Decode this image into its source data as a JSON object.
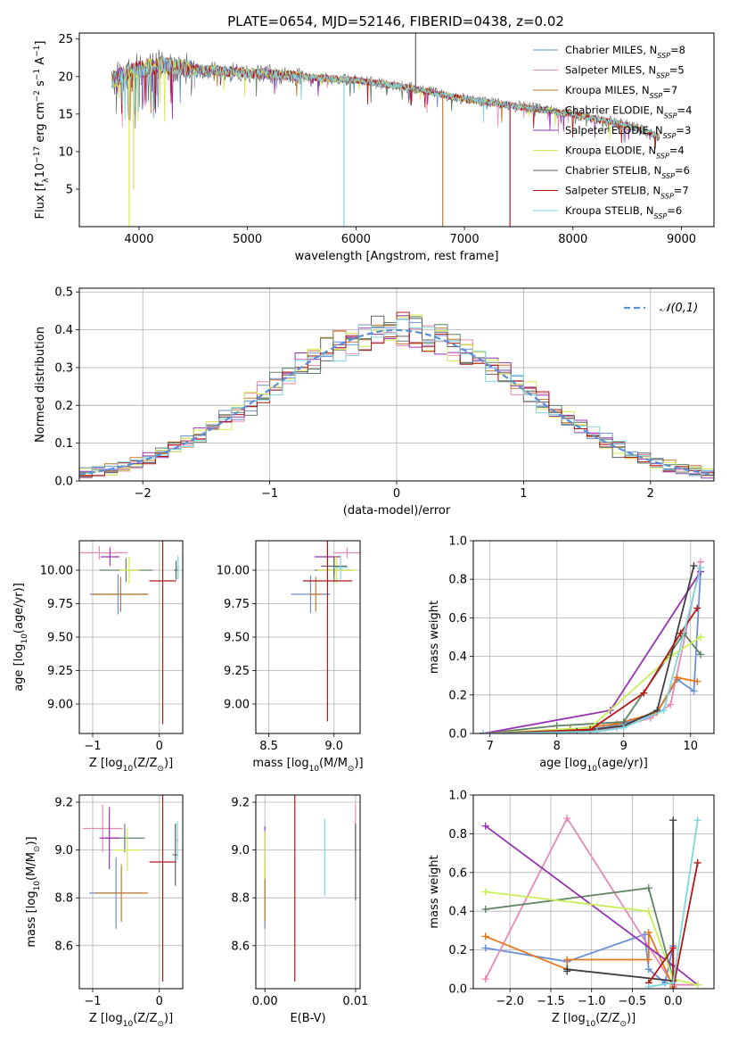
{
  "figure_title": "PLATE=0654, MJD=52146, FIBERID=0438, z=0.02",
  "model_colors": [
    "#6a8fd6",
    "#e48ab5",
    "#c0782e",
    "#5f8364",
    "#9634b1",
    "#d9e64f",
    "#606060",
    "#b01818",
    "#7fd6dc"
  ],
  "summary_colors": [
    "#6a8fd6",
    "#e48ab5",
    "#e6771e",
    "#5f8364",
    "#9634b1",
    "#c8ee5a",
    "#404040",
    "#b01818",
    "#7fd6dc"
  ],
  "chart_data": [
    {
      "id": "spectrum",
      "type": "line",
      "title": "PLATE=0654, MJD=52146, FIBERID=0438, z=0.02",
      "xlabel": "wavelength [Angstrom, rest frame]",
      "ylabel_parts": {
        "a": "Flux [f",
        "sub": "λ",
        "b": "10",
        "sup1": "−17",
        "c": " erg cm",
        "sup2": "−2",
        "d": " s",
        "sup3": "−1",
        "e": " A",
        "sup4": "−1",
        "f": "]"
      },
      "xlim": [
        3450,
        9300
      ],
      "ylim": [
        0,
        25.8
      ],
      "xticks": [
        4000,
        5000,
        6000,
        7000,
        8000,
        9000
      ],
      "yticks": [
        5,
        10,
        15,
        20,
        25
      ],
      "continuum": [
        [
          3750,
          19.5
        ],
        [
          3900,
          20.5
        ],
        [
          4000,
          21
        ],
        [
          4200,
          21.5
        ],
        [
          4500,
          21
        ],
        [
          5000,
          20.5
        ],
        [
          5500,
          20
        ],
        [
          6000,
          19.5
        ],
        [
          6500,
          18.5
        ],
        [
          7000,
          17
        ],
        [
          7500,
          16
        ],
        [
          8000,
          15
        ],
        [
          8500,
          13.5
        ],
        [
          8800,
          12
        ]
      ],
      "legend": [
        {
          "base": "Chabrier MILES, N",
          "sub": "SSP",
          "rest": "=8"
        },
        {
          "base": "Salpeter MILES, N",
          "sub": "SSP",
          "rest": "=5"
        },
        {
          "base": "Kroupa MILES, N",
          "sub": "SSP",
          "rest": "=7"
        },
        {
          "base": "Chabrier ELODIE, N",
          "sub": "SSP",
          "rest": "=4"
        },
        {
          "base": "Salpeter ELODIE, N",
          "sub": "SSP",
          "rest": "=3"
        },
        {
          "base": "Kroupa ELODIE, N",
          "sub": "SSP",
          "rest": "=4"
        },
        {
          "base": "Chabrier STELIB, N",
          "sub": "SSP",
          "rest": "=6"
        },
        {
          "base": "Salpeter STELIB, N",
          "sub": "SSP",
          "rest": "=7"
        },
        {
          "base": "Kroupa STELIB, N",
          "sub": "SSP",
          "rest": "=6"
        }
      ],
      "drops": [
        {
          "series": 5,
          "x": 3910,
          "to": 0
        },
        {
          "series": 8,
          "x": 5890,
          "to": 0
        },
        {
          "series": 2,
          "x": 6800,
          "to": 0
        },
        {
          "series": 7,
          "x": 7420,
          "to": 0
        },
        {
          "series": 5,
          "x": 3950,
          "to": 5
        },
        {
          "series": 6,
          "x": 6550,
          "to": 26
        }
      ]
    },
    {
      "id": "residuals",
      "type": "histogram",
      "xlabel": "(data-model)/error",
      "ylabel": "Normed distribution",
      "xlim": [
        -2.5,
        2.5
      ],
      "ylim": [
        0,
        0.51
      ],
      "xticks": [
        -2,
        -1,
        0,
        1,
        2
      ],
      "yticks": [
        0.0,
        0.1,
        0.2,
        0.3,
        0.4,
        0.5
      ],
      "bin_width": 0.1,
      "legend": "𝒩(0,1)",
      "reference_color": "#5b8fd6"
    },
    {
      "id": "age_vs_Z",
      "type": "errorbar",
      "xlabel_parts": {
        "a": "Z [log",
        "sub": "10",
        "b": "(Z/Z",
        "sub2": "⊙",
        "c": ")]"
      },
      "ylabel_parts": {
        "a": "age  [log",
        "sub": "10",
        "b": "(age/yr)]"
      },
      "xlim": [
        -1.2,
        0.35
      ],
      "ylim": [
        8.78,
        10.22
      ],
      "xticks": [
        -1,
        0
      ],
      "xticklabels": [
        "−1",
        "0"
      ],
      "yticks": [
        9.0,
        9.25,
        9.5,
        9.75,
        10.0
      ],
      "yticklabels": [
        "9.00",
        "9.25",
        "9.50",
        "9.75",
        "10.00"
      ],
      "points": [
        {
          "x": -0.62,
          "xerr": 0.42,
          "y": 9.82,
          "yerr": 0.15,
          "c": 0
        },
        {
          "x": -0.9,
          "xerr": 0.42,
          "y": 10.13,
          "yerr": 0.05,
          "c": 1
        },
        {
          "x": -0.58,
          "xerr": 0.42,
          "y": 9.82,
          "yerr": 0.13,
          "c": 2
        },
        {
          "x": -0.5,
          "xerr": 0.4,
          "y": 10.0,
          "yerr": 0.09,
          "c": 3
        },
        {
          "x": -0.74,
          "xerr": 0.14,
          "y": 10.1,
          "yerr": 0.07,
          "c": 4
        },
        {
          "x": -0.45,
          "xerr": 0.15,
          "y": 10.0,
          "yerr": 0.1,
          "c": 5
        },
        {
          "x": 0.25,
          "xerr": 0.03,
          "y": 10.0,
          "yerr": 0.07,
          "c": 6
        },
        {
          "x": 0.05,
          "xerr": 0.2,
          "y": 9.92,
          "yerr": 1.07,
          "c": 7
        },
        {
          "x": 0.28,
          "xerr": 0.02,
          "y": 10.02,
          "yerr": 0.09,
          "c": 8
        }
      ]
    },
    {
      "id": "age_vs_mass",
      "type": "errorbar",
      "xlabel_parts": {
        "a": "mass [log",
        "sub": "10",
        "b": "(M/M",
        "sub2": "⊙",
        "c": ")]"
      },
      "xlim": [
        8.4,
        9.2
      ],
      "ylim": [
        8.78,
        10.22
      ],
      "xticks": [
        8.5,
        9.0
      ],
      "xticklabels": [
        "8.5",
        "9.0"
      ],
      "yticks": [
        9.0,
        9.25,
        9.5,
        9.75,
        10.0
      ],
      "yticklabels": [
        "9.00",
        "9.25",
        "9.50",
        "9.75",
        "10.00"
      ],
      "points": [
        {
          "x": 8.82,
          "xerr": 0.15,
          "y": 9.82,
          "yerr": 0.14,
          "c": 0
        },
        {
          "x": 9.1,
          "xerr": 0.1,
          "y": 10.13,
          "yerr": 0.04,
          "c": 1
        },
        {
          "x": 8.86,
          "xerr": 0.05,
          "y": 9.82,
          "yerr": 0.13,
          "c": 2
        },
        {
          "x": 9.0,
          "xerr": 0.15,
          "y": 10.0,
          "yerr": 0.09,
          "c": 3
        },
        {
          "x": 8.95,
          "xerr": 0.1,
          "y": 10.1,
          "yerr": 0.07,
          "c": 4
        },
        {
          "x": 9.02,
          "xerr": 0.15,
          "y": 10.0,
          "yerr": 0.1,
          "c": 5
        },
        {
          "x": 9.0,
          "xerr": 0.1,
          "y": 10.03,
          "yerr": 0.07,
          "c": 6
        },
        {
          "x": 8.95,
          "xerr": 0.19,
          "y": 9.92,
          "yerr": 1.05,
          "c": 7
        },
        {
          "x": 9.05,
          "xerr": 0.06,
          "y": 10.02,
          "yerr": 0.09,
          "c": 8
        }
      ]
    },
    {
      "id": "weight_vs_age",
      "type": "line",
      "xlabel_parts": {
        "a": "age  [log",
        "sub": "10",
        "b": "(age/yr)]"
      },
      "ylabel": "mass weight",
      "xlim": [
        6.75,
        10.35
      ],
      "ylim": [
        0,
        1.0
      ],
      "xticks": [
        7,
        8,
        9,
        10
      ],
      "xticklabels": [
        "7",
        "8",
        "9",
        "10"
      ],
      "yticks": [
        0.0,
        0.2,
        0.4,
        0.6,
        0.8,
        1.0
      ],
      "yticklabels": [
        "0.0",
        "0.2",
        "0.4",
        "0.6",
        "0.8",
        "1.0"
      ],
      "series": [
        {
          "c": 0,
          "x": [
            6.9,
            8.0,
            8.7,
            9.1,
            9.5,
            9.8,
            10.05,
            10.15
          ],
          "y": [
            0.0,
            0.01,
            0.03,
            0.06,
            0.11,
            0.28,
            0.22,
            0.84
          ]
        },
        {
          "c": 1,
          "x": [
            6.9,
            8.3,
            8.9,
            9.4,
            9.7,
            10.15
          ],
          "y": [
            0.0,
            0.01,
            0.03,
            0.08,
            0.15,
            0.89
          ]
        },
        {
          "c": 2,
          "x": [
            6.9,
            8.2,
            8.9,
            9.5,
            9.8,
            10.1
          ],
          "y": [
            0.0,
            0.02,
            0.05,
            0.11,
            0.29,
            0.27
          ]
        },
        {
          "c": 3,
          "x": [
            6.9,
            8.0,
            9.0,
            9.9,
            10.15
          ],
          "y": [
            0.0,
            0.04,
            0.06,
            0.52,
            0.41
          ]
        },
        {
          "c": 4,
          "x": [
            6.9,
            8.8,
            10.15
          ],
          "y": [
            0.0,
            0.12,
            0.84
          ]
        },
        {
          "c": 5,
          "x": [
            6.9,
            8.5,
            9.7,
            10.15
          ],
          "y": [
            0.0,
            0.03,
            0.4,
            0.5
          ]
        },
        {
          "c": 6,
          "x": [
            6.9,
            8.3,
            9.0,
            9.5,
            10.05
          ],
          "y": [
            0.0,
            0.01,
            0.04,
            0.12,
            0.87
          ]
        },
        {
          "c": 7,
          "x": [
            6.9,
            8.5,
            9.3,
            9.85,
            10.1
          ],
          "y": [
            0.0,
            0.02,
            0.21,
            0.52,
            0.65
          ]
        },
        {
          "c": 8,
          "x": [
            6.9,
            8.6,
            9.0,
            9.6,
            10.15
          ],
          "y": [
            0.0,
            0.01,
            0.03,
            0.12,
            0.86
          ]
        }
      ]
    },
    {
      "id": "mass_vs_Z",
      "type": "errorbar",
      "xlabel_parts": {
        "a": "Z [log",
        "sub": "10",
        "b": "(Z/Z",
        "sub2": "⊙",
        "c": ")]"
      },
      "ylabel_parts": {
        "a": "mass [log",
        "sub": "10",
        "b": "(M/M",
        "sub2": "⊙",
        "c": ")]"
      },
      "xlim": [
        -1.2,
        0.35
      ],
      "ylim": [
        8.42,
        9.23
      ],
      "xticks": [
        -1,
        0
      ],
      "xticklabels": [
        "−1",
        "0"
      ],
      "yticks": [
        8.6,
        8.8,
        9.0,
        9.2
      ],
      "yticklabels": [
        "8.6",
        "8.8",
        "9.0",
        "9.2"
      ],
      "points": [
        {
          "x": -0.65,
          "xerr": 0.4,
          "y": 8.82,
          "yerr": 0.15,
          "c": 0
        },
        {
          "x": -0.85,
          "xerr": 0.3,
          "y": 9.09,
          "yerr": 0.1,
          "c": 1
        },
        {
          "x": -0.57,
          "xerr": 0.4,
          "y": 8.82,
          "yerr": 0.12,
          "c": 2
        },
        {
          "x": -0.52,
          "xerr": 0.3,
          "y": 9.05,
          "yerr": 0.06,
          "c": 3
        },
        {
          "x": -0.75,
          "xerr": 0.15,
          "y": 9.05,
          "yerr": 0.13,
          "c": 4
        },
        {
          "x": -0.48,
          "xerr": 0.2,
          "y": 9.0,
          "yerr": 0.09,
          "c": 5
        },
        {
          "x": 0.24,
          "xerr": 0.04,
          "y": 8.98,
          "yerr": 0.13,
          "c": 6
        },
        {
          "x": 0.05,
          "xerr": 0.2,
          "y": 8.95,
          "yerr": 0.5,
          "c": 7
        },
        {
          "x": 0.27,
          "xerr": 0.02,
          "y": 9.04,
          "yerr": 0.08,
          "c": 8
        }
      ]
    },
    {
      "id": "mass_vs_ebv",
      "type": "errorbar",
      "xlabel": "E(B-V)",
      "xlim": [
        -0.001,
        0.0105
      ],
      "ylim": [
        8.42,
        9.23
      ],
      "xticks": [
        0.0,
        0.01
      ],
      "xticklabels": [
        "0.00",
        "0.01"
      ],
      "yticks": [
        8.6,
        8.8,
        9.0,
        9.2
      ],
      "yticklabels": [
        "8.6",
        "8.8",
        "9.0",
        "9.2"
      ],
      "points": [
        {
          "x": 0.0,
          "xerr": 0,
          "y": 8.82,
          "yerr": 0.15,
          "c": 0
        },
        {
          "x": 0.01,
          "xerr": 0,
          "y": 9.09,
          "yerr": 0.1,
          "c": 1
        },
        {
          "x": 0.0,
          "xerr": 0,
          "y": 8.82,
          "yerr": 0.12,
          "c": 2
        },
        {
          "x": 0.01,
          "xerr": 0,
          "y": 9.05,
          "yerr": 0.06,
          "c": 3
        },
        {
          "x": 0.0,
          "xerr": 0,
          "y": 9.03,
          "yerr": 0.07,
          "c": 4
        },
        {
          "x": 0.0,
          "xerr": 0,
          "y": 8.98,
          "yerr": 0.1,
          "c": 5
        },
        {
          "x": 0.01,
          "xerr": 0,
          "y": 8.95,
          "yerr": 0.16,
          "c": 6
        },
        {
          "x": 0.0033,
          "xerr": 0,
          "y": 8.95,
          "yerr": 0.5,
          "c": 7
        },
        {
          "x": 0.0066,
          "xerr": 0,
          "y": 8.97,
          "yerr": 0.16,
          "c": 8
        }
      ]
    },
    {
      "id": "weight_vs_Z",
      "type": "line",
      "xlabel_parts": {
        "a": "Z [log",
        "sub": "10",
        "b": "(Z/Z",
        "sub2": "⊙",
        "c": ")]"
      },
      "ylabel": "mass weight",
      "xlim": [
        -2.45,
        0.5
      ],
      "ylim": [
        0,
        1.0
      ],
      "xticks": [
        -2.0,
        -1.5,
        -1.0,
        -0.5,
        0.0
      ],
      "xticklabels": [
        "−2.0",
        "−1.5",
        "−1.0",
        "−0.5",
        "0.0"
      ],
      "yticks": [
        0.0,
        0.2,
        0.4,
        0.6,
        0.8,
        1.0
      ],
      "yticklabels": [
        "0.0",
        "0.2",
        "0.4",
        "0.6",
        "0.8",
        "1.0"
      ],
      "series": [
        {
          "c": 0,
          "x": [
            -2.3,
            -1.3,
            -0.35,
            -0.3,
            -0.1,
            0.0,
            0.0
          ],
          "y": [
            0.21,
            0.14,
            0.28,
            0.1,
            0.03,
            0.22,
            0.01
          ]
        },
        {
          "c": 1,
          "x": [
            -2.3,
            -1.3,
            0.0,
            0.3
          ],
          "y": [
            0.05,
            0.88,
            0.02,
            0.02
          ]
        },
        {
          "c": 2,
          "x": [
            -2.3,
            -1.3,
            -1.3,
            -0.3,
            -0.3,
            0.0
          ],
          "y": [
            0.27,
            0.1,
            0.15,
            0.15,
            0.29,
            0.01
          ]
        },
        {
          "c": 3,
          "x": [
            -2.3,
            -0.3,
            0.0
          ],
          "y": [
            0.41,
            0.52,
            0.05
          ]
        },
        {
          "c": 4,
          "x": [
            -2.3,
            0.0,
            0.3
          ],
          "y": [
            0.84,
            0.12,
            0.02
          ]
        },
        {
          "c": 5,
          "x": [
            -2.3,
            -0.3,
            0.0,
            0.3
          ],
          "y": [
            0.5,
            0.4,
            0.05,
            0.02
          ]
        },
        {
          "c": 6,
          "x": [
            -1.3,
            -1.3,
            0.0,
            0.0
          ],
          "y": [
            0.09,
            0.1,
            0.04,
            0.87
          ]
        },
        {
          "c": 7,
          "x": [
            -0.3,
            0.0,
            0.0,
            0.3
          ],
          "y": [
            0.03,
            0.21,
            0.0,
            0.65
          ]
        },
        {
          "c": 8,
          "x": [
            -0.3,
            0.0,
            0.3
          ],
          "y": [
            0.01,
            0.03,
            0.87
          ]
        }
      ]
    }
  ]
}
